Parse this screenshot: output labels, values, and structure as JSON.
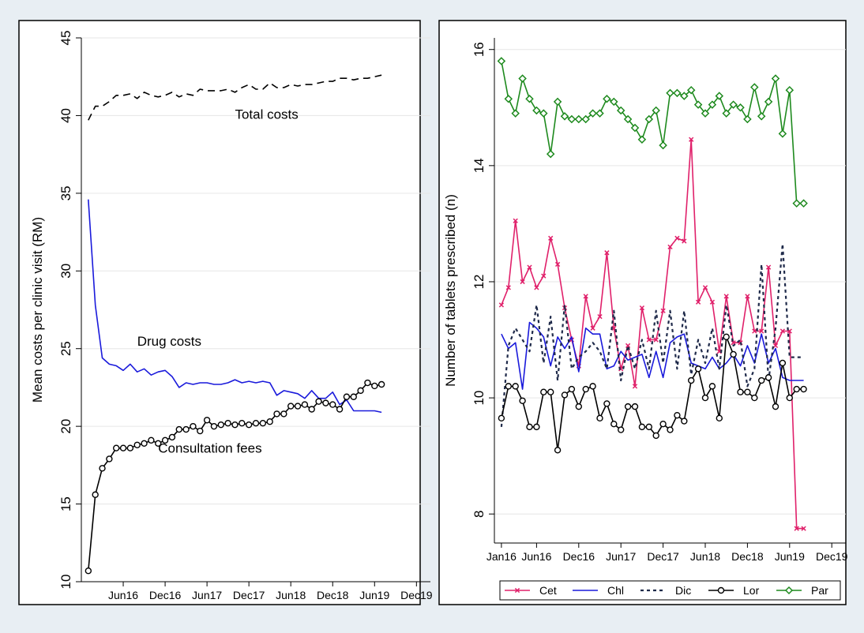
{
  "chart_data": [
    {
      "type": "line",
      "title": "",
      "xlabel": "",
      "ylabel": "Mean costs per clinic visit (RM)",
      "ylim": [
        10,
        45
      ],
      "yticks": [
        10,
        15,
        20,
        25,
        30,
        35,
        40,
        45
      ],
      "xticks": [
        "Jun16",
        "Dec16",
        "Jun17",
        "Dec17",
        "Jun18",
        "Dec18",
        "Jun19",
        "Dec19"
      ],
      "xtick_values": [
        5,
        11,
        17,
        23,
        29,
        35,
        41,
        47
      ],
      "xlim": [
        -1,
        49
      ],
      "grid": true,
      "annotations": [
        {
          "text": "Total costs",
          "x": 21,
          "y": 39.8
        },
        {
          "text": "Drug costs",
          "x": 7,
          "y": 25.2
        },
        {
          "text": "Consultation fees",
          "x": 10,
          "y": 18.3
        }
      ],
      "series": [
        {
          "key": "total",
          "color": "#000000",
          "dash": "9,6",
          "marker": "none",
          "x": [
            0,
            1,
            2,
            3,
            4,
            5,
            6,
            7,
            8,
            9,
            10,
            11,
            12,
            13,
            14,
            15,
            16,
            17,
            18,
            19,
            20,
            21,
            22,
            23,
            24,
            25,
            26,
            27,
            28,
            29,
            30,
            31,
            32,
            33,
            34,
            35,
            36,
            37,
            38,
            39,
            40,
            41,
            42
          ],
          "y": [
            39.7,
            40.6,
            40.6,
            40.9,
            41.3,
            41.3,
            41.4,
            41.1,
            41.5,
            41.3,
            41.2,
            41.3,
            41.5,
            41.2,
            41.4,
            41.3,
            41.7,
            41.6,
            41.6,
            41.6,
            41.7,
            41.5,
            41.8,
            42.0,
            41.7,
            41.7,
            42.1,
            41.8,
            41.8,
            42.0,
            41.9,
            42.0,
            42.0,
            42.1,
            42.2,
            42.2,
            42.4,
            42.4,
            42.3,
            42.4,
            42.4,
            42.5,
            42.6
          ]
        },
        {
          "key": "drug",
          "color": "#1a1adb",
          "dash": "",
          "marker": "none",
          "x": [
            0,
            1,
            2,
            3,
            4,
            5,
            6,
            7,
            8,
            9,
            10,
            11,
            12,
            13,
            14,
            15,
            16,
            17,
            18,
            19,
            20,
            21,
            22,
            23,
            24,
            25,
            26,
            27,
            28,
            29,
            30,
            31,
            32,
            33,
            34,
            35,
            36,
            37,
            38,
            39,
            40,
            41,
            42
          ],
          "y": [
            34.6,
            27.8,
            24.4,
            24.0,
            23.9,
            23.6,
            24.0,
            23.5,
            23.7,
            23.3,
            23.5,
            23.6,
            23.2,
            22.5,
            22.8,
            22.7,
            22.8,
            22.8,
            22.7,
            22.7,
            22.8,
            23.0,
            22.8,
            22.9,
            22.8,
            22.9,
            22.8,
            22.0,
            22.3,
            22.2,
            22.1,
            21.8,
            22.3,
            21.8,
            21.8,
            22.2,
            21.4,
            21.7,
            21.0,
            21.0,
            21.0,
            21.0,
            20.9
          ]
        },
        {
          "key": "consult",
          "color": "#000000",
          "dash": "",
          "marker": "circle",
          "x": [
            0,
            1,
            2,
            3,
            4,
            5,
            6,
            7,
            8,
            9,
            10,
            11,
            12,
            13,
            14,
            15,
            16,
            17,
            18,
            19,
            20,
            21,
            22,
            23,
            24,
            25,
            26,
            27,
            28,
            29,
            30,
            31,
            32,
            33,
            34,
            35,
            36,
            37,
            38,
            39,
            40,
            41,
            42
          ],
          "y": [
            10.7,
            15.6,
            17.3,
            17.9,
            18.6,
            18.6,
            18.6,
            18.8,
            18.9,
            19.1,
            18.9,
            19.1,
            19.3,
            19.8,
            19.8,
            20.0,
            19.7,
            20.4,
            20.0,
            20.1,
            20.2,
            20.1,
            20.2,
            20.1,
            20.2,
            20.2,
            20.3,
            20.8,
            20.8,
            21.3,
            21.3,
            21.4,
            21.1,
            21.6,
            21.5,
            21.4,
            21.1,
            21.9,
            21.9,
            22.3,
            22.8,
            22.6,
            22.7
          ]
        }
      ]
    },
    {
      "type": "line",
      "title": "",
      "xlabel": "",
      "ylabel": "Number of tablets prescribed (n)",
      "ylim": [
        7.5,
        16.2
      ],
      "yticks": [
        8,
        10,
        12,
        14,
        16
      ],
      "xticks": [
        "Jan16",
        "Jun16",
        "Dec16",
        "Jun17",
        "Dec17",
        "Jun18",
        "Dec18",
        "Jun19",
        "Dec19"
      ],
      "xtick_values": [
        0,
        5,
        11,
        17,
        23,
        29,
        35,
        41,
        47
      ],
      "xlim": [
        -1,
        49
      ],
      "grid": true,
      "legend": "bottom",
      "series": [
        {
          "key": "cet",
          "name": "Cet",
          "color": "#e0206a",
          "dash": "",
          "marker": "x",
          "x": [
            0,
            1,
            2,
            3,
            4,
            5,
            6,
            7,
            8,
            9,
            10,
            11,
            12,
            13,
            14,
            15,
            16,
            17,
            18,
            19,
            20,
            21,
            22,
            23,
            24,
            25,
            26,
            27,
            28,
            29,
            30,
            31,
            32,
            33,
            34,
            35,
            36,
            37,
            38,
            39,
            40,
            41,
            42,
            43
          ],
          "y": [
            11.6,
            11.9,
            13.05,
            12.0,
            12.25,
            11.9,
            12.1,
            12.75,
            12.3,
            11.55,
            11.0,
            10.55,
            11.75,
            11.2,
            11.4,
            12.5,
            11.2,
            10.5,
            10.9,
            10.2,
            11.55,
            11.0,
            11.0,
            11.5,
            12.6,
            12.75,
            12.7,
            14.45,
            11.65,
            11.9,
            11.65,
            10.8,
            11.75,
            10.95,
            10.95,
            11.75,
            11.15,
            11.15,
            12.25,
            10.9,
            11.15,
            11.15,
            7.75,
            7.75
          ]
        },
        {
          "key": "chl",
          "name": "Chl",
          "color": "#1a1adb",
          "dash": "",
          "marker": "none",
          "x": [
            0,
            1,
            2,
            3,
            4,
            5,
            6,
            7,
            8,
            9,
            10,
            11,
            12,
            13,
            14,
            15,
            16,
            17,
            18,
            19,
            20,
            21,
            22,
            23,
            24,
            25,
            26,
            27,
            28,
            29,
            30,
            31,
            32,
            33,
            34,
            35,
            36,
            37,
            38,
            39,
            40,
            41,
            42,
            43
          ],
          "y": [
            11.1,
            10.85,
            10.95,
            10.15,
            11.3,
            11.2,
            11.05,
            10.55,
            11.05,
            10.85,
            11.05,
            10.45,
            11.2,
            11.1,
            11.1,
            10.5,
            10.55,
            10.8,
            10.65,
            10.7,
            10.75,
            10.35,
            10.8,
            10.35,
            10.95,
            11.05,
            11.1,
            10.6,
            10.55,
            10.5,
            10.7,
            10.5,
            10.6,
            10.75,
            10.55,
            10.9,
            10.6,
            11.1,
            10.6,
            10.85,
            10.35,
            10.3,
            10.3,
            10.3
          ]
        },
        {
          "key": "dic",
          "name": "Dic",
          "color": "#1f2a4a",
          "dash": "4,4",
          "marker": "none",
          "x": [
            0,
            1,
            2,
            3,
            4,
            5,
            6,
            7,
            8,
            9,
            10,
            11,
            12,
            13,
            14,
            15,
            16,
            17,
            18,
            19,
            20,
            21,
            22,
            23,
            24,
            25,
            26,
            27,
            28,
            29,
            30,
            31,
            32,
            33,
            34,
            35,
            36,
            37,
            38,
            39,
            40,
            41,
            42,
            43
          ],
          "y": [
            9.5,
            10.9,
            11.2,
            11.0,
            10.8,
            11.6,
            10.6,
            11.4,
            10.3,
            11.6,
            10.5,
            10.7,
            10.8,
            10.95,
            10.8,
            10.5,
            11.5,
            10.3,
            10.9,
            10.5,
            11.0,
            10.5,
            11.5,
            10.6,
            11.5,
            10.5,
            11.5,
            10.4,
            11.0,
            10.6,
            11.2,
            10.5,
            11.6,
            10.9,
            11.0,
            10.2,
            10.5,
            12.3,
            10.3,
            11.2,
            12.65,
            10.7,
            10.7,
            10.7
          ]
        },
        {
          "key": "lor",
          "name": "Lor",
          "color": "#000000",
          "dash": "",
          "marker": "circle",
          "x": [
            0,
            1,
            2,
            3,
            4,
            5,
            6,
            7,
            8,
            9,
            10,
            11,
            12,
            13,
            14,
            15,
            16,
            17,
            18,
            19,
            20,
            21,
            22,
            23,
            24,
            25,
            26,
            27,
            28,
            29,
            30,
            31,
            32,
            33,
            34,
            35,
            36,
            37,
            38,
            39,
            40,
            41,
            42,
            43
          ],
          "y": [
            9.65,
            10.2,
            10.2,
            9.95,
            9.5,
            9.5,
            10.1,
            10.1,
            9.1,
            10.05,
            10.15,
            9.85,
            10.15,
            10.2,
            9.65,
            9.9,
            9.55,
            9.45,
            9.85,
            9.85,
            9.5,
            9.5,
            9.35,
            9.55,
            9.45,
            9.7,
            9.6,
            10.3,
            10.5,
            10.0,
            10.2,
            9.65,
            11.05,
            10.75,
            10.1,
            10.1,
            10.0,
            10.3,
            10.35,
            9.85,
            10.6,
            10.0,
            10.15,
            10.15
          ]
        },
        {
          "key": "par",
          "name": "Par",
          "color": "#1e8a1e",
          "dash": "",
          "marker": "diamond",
          "x": [
            0,
            1,
            2,
            3,
            4,
            5,
            6,
            7,
            8,
            9,
            10,
            11,
            12,
            13,
            14,
            15,
            16,
            17,
            18,
            19,
            20,
            21,
            22,
            23,
            24,
            25,
            26,
            27,
            28,
            29,
            30,
            31,
            32,
            33,
            34,
            35,
            36,
            37,
            38,
            39,
            40,
            41,
            42,
            43
          ],
          "y": [
            15.8,
            15.15,
            14.9,
            15.5,
            15.15,
            14.95,
            14.9,
            14.2,
            15.1,
            14.85,
            14.8,
            14.8,
            14.8,
            14.9,
            14.9,
            15.15,
            15.1,
            14.95,
            14.8,
            14.65,
            14.45,
            14.8,
            14.95,
            14.35,
            15.25,
            15.25,
            15.2,
            15.3,
            15.05,
            14.9,
            15.05,
            15.2,
            14.9,
            15.05,
            15.0,
            14.8,
            15.35,
            14.85,
            15.1,
            15.5,
            14.55,
            15.3,
            13.35,
            13.35
          ]
        }
      ]
    }
  ]
}
